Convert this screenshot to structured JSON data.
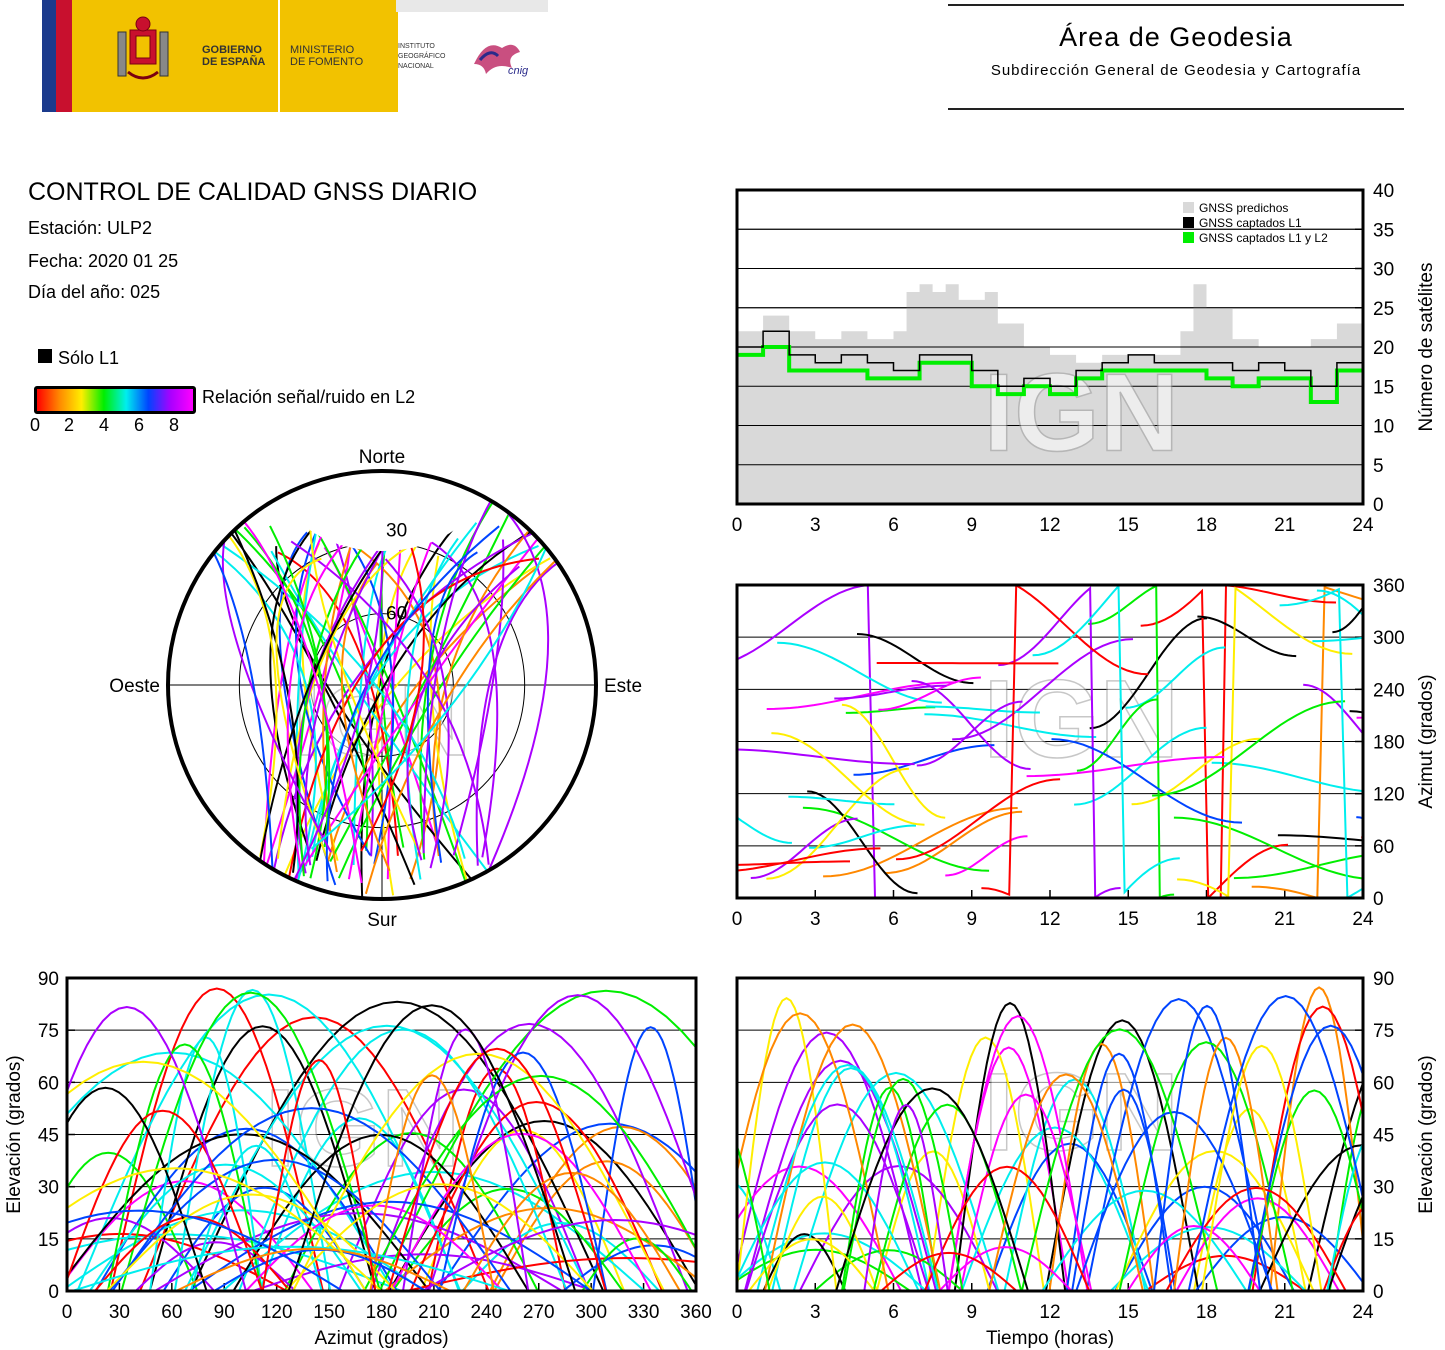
{
  "header": {
    "gov_line1": "GOBIERNO",
    "gov_line2": "DE ESPAÑA",
    "ministry_line1": "MINISTERIO",
    "ministry_line2": "DE FOMENTO",
    "ign_line1": "INSTITUTO",
    "ign_line2": "GEOGRÁFICO",
    "ign_line3": "NACIONAL",
    "cnig_logo": "cnig",
    "area_title": "Área de Geodesia",
    "area_subtitle": "Subdirección General de Geodesia y Cartografía"
  },
  "report": {
    "title": "CONTROL DE CALIDAD GNSS DIARIO",
    "station": "Estación: ULP2",
    "date": "Fecha: 2020 01 25",
    "doy": "Día del año: 025"
  },
  "legend": {
    "l1_only": "Sólo L1",
    "snr_label": "Relación señal/ruido en L2",
    "snr_ticks": [
      "0",
      "2",
      "4",
      "6",
      "8"
    ],
    "snr_colors": [
      "#ff0000",
      "#ff8800",
      "#ffee00",
      "#00ee00",
      "#00eeee",
      "#0044ff",
      "#aa00ff",
      "#ff00ff"
    ],
    "l1_color": "#000000"
  },
  "watermark": "IGN",
  "chart_data": [
    {
      "type": "line",
      "id": "sat-count",
      "ylabel": "Número de satélites",
      "ylim": [
        0,
        40
      ],
      "yticks": [
        0,
        5,
        10,
        15,
        20,
        25,
        30,
        35,
        40
      ],
      "xlim": [
        0,
        24
      ],
      "xticks": [
        0,
        3,
        6,
        9,
        12,
        15,
        18,
        21,
        24
      ],
      "legend_position": "top-right",
      "series": [
        {
          "name": "GNSS predichos",
          "color": "#d9d9d9",
          "x": [
            0,
            1,
            2,
            3,
            4,
            5,
            6,
            6.5,
            7,
            7.5,
            8,
            8.5,
            9,
            9.5,
            10,
            11,
            12,
            13,
            14,
            15,
            16,
            17,
            17.5,
            18,
            19,
            20,
            21,
            22,
            23,
            24
          ],
          "values": [
            22,
            24,
            22,
            21,
            22,
            21,
            22,
            27,
            28,
            27,
            28,
            26,
            26,
            27,
            23,
            20,
            19,
            18,
            19,
            19,
            19,
            22,
            28,
            25,
            21,
            20,
            20,
            21,
            23,
            23
          ]
        },
        {
          "name": "GNSS captados L1",
          "color": "#000000",
          "x": [
            0,
            1,
            2,
            3,
            4,
            5,
            6,
            7,
            8,
            9,
            10,
            11,
            12,
            13,
            14,
            15,
            16,
            17,
            18,
            19,
            20,
            21,
            22,
            23,
            24
          ],
          "values": [
            20,
            22,
            19,
            18,
            19,
            18,
            17,
            19,
            19,
            17,
            15,
            16,
            15,
            17,
            18,
            19,
            18,
            18,
            18,
            17,
            18,
            17,
            15,
            18,
            19
          ]
        },
        {
          "name": "GNSS captados L1 y L2",
          "color": "#00ee00",
          "x": [
            0,
            1,
            2,
            3,
            4,
            5,
            6,
            7,
            8,
            9,
            10,
            11,
            12,
            13,
            14,
            15,
            16,
            17,
            18,
            19,
            20,
            21,
            22,
            23,
            24
          ],
          "values": [
            19,
            20,
            17,
            17,
            17,
            16,
            16,
            18,
            18,
            15,
            14,
            15,
            14,
            16,
            17,
            17,
            17,
            17,
            16,
            15,
            16,
            16,
            13,
            17,
            17
          ]
        }
      ]
    },
    {
      "type": "scatter",
      "id": "azimuth-time",
      "ylabel": "Azimut (grados)",
      "ylim": [
        0,
        360
      ],
      "yticks": [
        0,
        60,
        120,
        180,
        240,
        300,
        360
      ],
      "xlim": [
        0,
        24
      ],
      "xticks": [
        0,
        3,
        6,
        9,
        12,
        15,
        18,
        21,
        24
      ]
    },
    {
      "type": "scatter",
      "id": "skyplot",
      "labels": {
        "north": "Norte",
        "south": "Sur",
        "east": "Este",
        "west": "Oeste"
      },
      "ring_labels": [
        "30",
        "60"
      ]
    },
    {
      "type": "scatter",
      "id": "elev-azimuth",
      "xlabel": "Azimut (grados)",
      "ylabel": "Elevación (grados)",
      "xlim": [
        0,
        360
      ],
      "xticks": [
        0,
        30,
        60,
        90,
        120,
        150,
        180,
        210,
        240,
        270,
        300,
        330,
        360
      ],
      "ylim": [
        0,
        90
      ],
      "yticks": [
        0,
        15,
        30,
        45,
        60,
        75,
        90
      ]
    },
    {
      "type": "scatter",
      "id": "elev-time",
      "xlabel": "Tiempo (horas)",
      "ylabel": "Elevación (grados)",
      "xlim": [
        0,
        24
      ],
      "xticks": [
        0,
        3,
        6,
        9,
        12,
        15,
        18,
        21,
        24
      ],
      "ylim": [
        0,
        90
      ],
      "yticks": [
        0,
        15,
        30,
        45,
        60,
        75,
        90
      ]
    }
  ]
}
